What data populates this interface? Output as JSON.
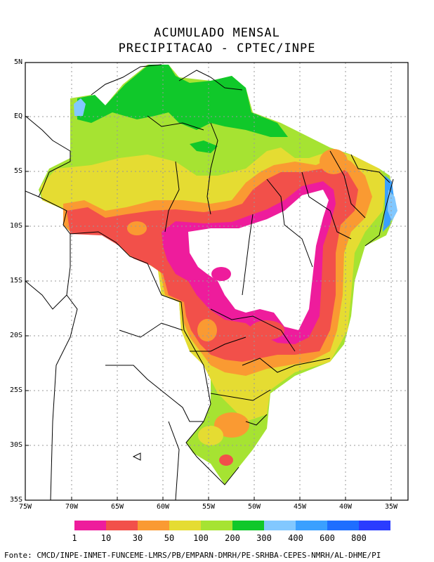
{
  "title_line1": "ACUMULADO MENSAL",
  "title_line2": "PRECIPITACAO - CPTEC/INPE",
  "lat_labels": [
    "5N",
    "EQ",
    "5S",
    "10S",
    "15S",
    "20S",
    "25S",
    "30S",
    "35S"
  ],
  "lon_labels": [
    "75W",
    "70W",
    "65W",
    "60W",
    "55W",
    "50W",
    "45W",
    "40W",
    "35W"
  ],
  "colorbar": {
    "colors": [
      "#ee1c9c",
      "#f2504a",
      "#fa9a32",
      "#e5dc32",
      "#a6e332",
      "#10c82a",
      "#82c8ff",
      "#3aa0ff",
      "#1e6eff",
      "#2a3cff"
    ],
    "labels": [
      "1",
      "10",
      "30",
      "50",
      "100",
      "200",
      "300",
      "400",
      "600",
      "800"
    ]
  },
  "source": "Fonte: CMCD/INPE-INMET-FUNCEME-LMRS/PB/EMPARN-DMRH/PE-SRHBA-CEPES-NMRH/AL-DHME/PI"
}
